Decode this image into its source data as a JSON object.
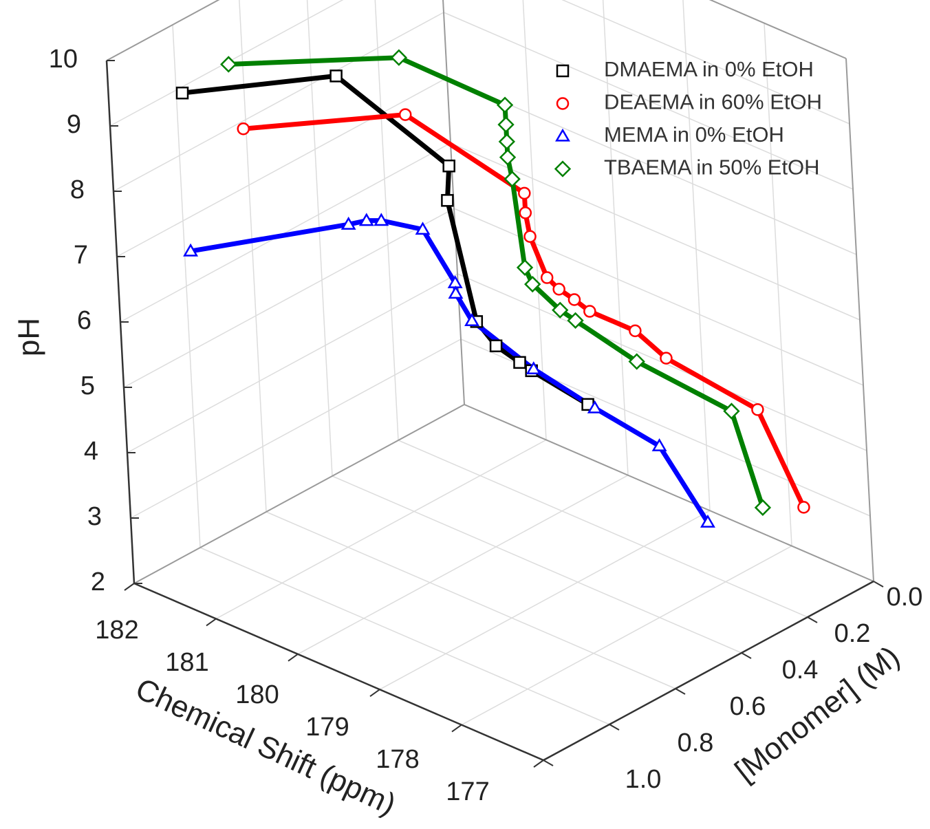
{
  "chart_data": {
    "type": "line3d",
    "xlabel": "Chemical Shift (ppm)",
    "ylabel": "[Monomer] (M)",
    "zlabel": "pH",
    "xlim": [
      177,
      182
    ],
    "ylim": [
      0,
      1
    ],
    "zlim": [
      2,
      10
    ],
    "xticks": [
      177,
      178,
      179,
      180,
      181,
      182
    ],
    "yticks": [
      {
        "value": 0,
        "label": "0.0"
      },
      0.2,
      0.4,
      0.6,
      0.8,
      {
        "value": 1,
        "label": "1.0"
      }
    ],
    "zticks": [
      2,
      3,
      4,
      5,
      6,
      7,
      8,
      9,
      10
    ],
    "grid": true,
    "legend": "upper right",
    "series": [
      {
        "name": "DMAEMA in 0% EtOH",
        "color": "#000000",
        "marker": "square",
        "x": [
          181.5,
          180.5,
          179.7,
          179.7,
          179.5,
          179.4,
          179.2,
          179.1,
          178.8
        ],
        "y": [
          0.9,
          0.68,
          0.55,
          0.56,
          0.54,
          0.51,
          0.49,
          0.48,
          0.39
        ],
        "z": [
          9.5,
          9.7,
          8.4,
          7.9,
          6.1,
          5.7,
          5.5,
          5.4,
          4.8
        ]
      },
      {
        "name": "DEAEMA in 60% EtOH",
        "color": "#ff0000",
        "marker": "circle",
        "x": [
          181.1,
          180.0,
          179.2,
          179.2,
          179.2,
          179.1,
          179.0,
          178.9,
          178.8,
          178.5,
          178.3,
          177.7,
          177.4
        ],
        "y": [
          0.82,
          0.6,
          0.45,
          0.45,
          0.44,
          0.42,
          0.41,
          0.39,
          0.37,
          0.31,
          0.27,
          0.15,
          0.1
        ],
        "z": [
          8.95,
          9.16,
          7.98,
          7.68,
          7.29,
          6.66,
          6.51,
          6.35,
          6.17,
          5.87,
          5.45,
          4.66,
          3.19
        ]
      },
      {
        "name": "MEMA in 0% EtOH",
        "color": "#0000ff",
        "marker": "triangle",
        "x": [
          181.5,
          180.4,
          180.3,
          180.2,
          179.9,
          179.7,
          179.7,
          179.6,
          179.2,
          178.8,
          178.4,
          178.1
        ],
        "y": [
          0.9,
          0.69,
          0.66,
          0.64,
          0.59,
          0.55,
          0.55,
          0.53,
          0.45,
          0.37,
          0.28,
          0.22
        ],
        "z": [
          7.08,
          7.51,
          7.54,
          7.54,
          7.43,
          6.61,
          6.45,
          6.03,
          5.29,
          4.69,
          4.08,
          2.91
        ]
      },
      {
        "name": "TBAEMA in 50% EtOH",
        "color": "#008000",
        "marker": "diamond",
        "x": [
          181.2,
          180.0,
          179.3,
          179.3,
          179.3,
          179.3,
          179.3,
          179.2,
          179.2,
          179.0,
          178.9,
          178.5,
          177.9,
          177.7
        ],
        "y": [
          0.83,
          0.61,
          0.47,
          0.47,
          0.47,
          0.47,
          0.46,
          0.46,
          0.44,
          0.41,
          0.39,
          0.31,
          0.18,
          0.15
        ],
        "z": [
          9.91,
          10.06,
          9.33,
          9.03,
          8.77,
          8.53,
          8.17,
          6.87,
          6.56,
          6.19,
          6.03,
          5.4,
          4.61,
          3.16
        ]
      }
    ]
  }
}
